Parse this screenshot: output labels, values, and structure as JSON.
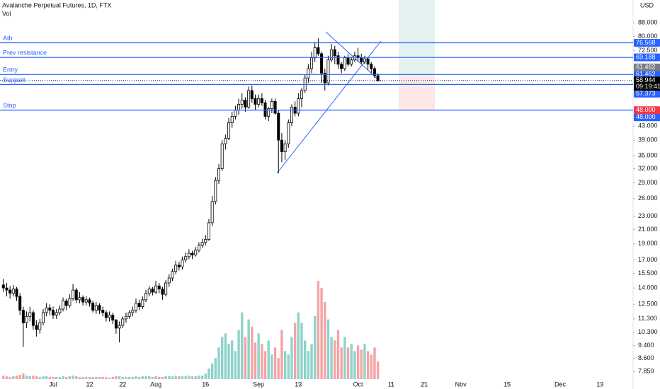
{
  "chart_data": {
    "type": "candlestick",
    "title": "Avalanche Perpetual Futures, 1D, FTX",
    "volume_label": "Vol",
    "currency": "USD",
    "x": [
      "Jun 16",
      "Jun 17",
      "Jun 18",
      "Jun 19",
      "Jun 20",
      "Jun 21",
      "Jun 22",
      "Jun 23",
      "Jun 24",
      "Jun 25",
      "Jun 26",
      "Jun 27",
      "Jun 28",
      "Jun 29",
      "Jun 30",
      "Jul 1",
      "Jul 2",
      "Jul 3",
      "Jul 4",
      "Jul 5",
      "Jul 6",
      "Jul 7",
      "Jul 8",
      "Jul 9",
      "Jul 10",
      "Jul 11",
      "Jul 12",
      "Jul 13",
      "Jul 14",
      "Jul 15",
      "Jul 16",
      "Jul 17",
      "Jul 18",
      "Jul 19",
      "Jul 20",
      "Jul 21",
      "Jul 22",
      "Jul 23",
      "Jul 24",
      "Jul 25",
      "Jul 26",
      "Jul 27",
      "Jul 28",
      "Jul 29",
      "Jul 30",
      "Jul 31",
      "Aug 1",
      "Aug 2",
      "Aug 3",
      "Aug 4",
      "Aug 5",
      "Aug 6",
      "Aug 7",
      "Aug 8",
      "Aug 9",
      "Aug 10",
      "Aug 11",
      "Aug 12",
      "Aug 13",
      "Aug 14",
      "Aug 15",
      "Aug 16",
      "Aug 17",
      "Aug 18",
      "Aug 19",
      "Aug 20",
      "Aug 21",
      "Aug 22",
      "Aug 23",
      "Aug 24",
      "Aug 25",
      "Aug 26",
      "Aug 27",
      "Aug 28",
      "Aug 29",
      "Aug 30",
      "Aug 31",
      "Sep 1",
      "Sep 2",
      "Sep 3",
      "Sep 4",
      "Sep 5",
      "Sep 6",
      "Sep 7",
      "Sep 8",
      "Sep 9",
      "Sep 10",
      "Sep 11",
      "Sep 12",
      "Sep 13",
      "Sep 14",
      "Sep 15",
      "Sep 16",
      "Sep 17",
      "Sep 18",
      "Sep 19",
      "Sep 20",
      "Sep 21",
      "Sep 22",
      "Sep 23",
      "Sep 24",
      "Sep 25",
      "Sep 26",
      "Sep 27",
      "Sep 28",
      "Sep 29",
      "Sep 30",
      "Oct 1",
      "Oct 2",
      "Oct 3",
      "Oct 4",
      "Oct 5",
      "Oct 6",
      "Oct 7"
    ],
    "open": [
      14.3,
      14.0,
      13.8,
      13.5,
      13.9,
      13.2,
      12.0,
      11.0,
      11.5,
      11.8,
      10.8,
      10.5,
      11.0,
      11.8,
      12.2,
      12.0,
      11.6,
      11.8,
      12.1,
      12.8,
      12.4,
      13.0,
      13.8,
      12.9,
      13.1,
      12.7,
      12.9,
      12.6,
      12.0,
      12.4,
      12.0,
      11.8,
      11.4,
      11.6,
      11.2,
      10.6,
      10.8,
      11.3,
      11.5,
      11.8,
      12.0,
      12.6,
      12.3,
      12.9,
      13.5,
      13.9,
      13.6,
      14.2,
      13.9,
      13.4,
      14.5,
      15.0,
      15.7,
      16.4,
      16.2,
      17.0,
      17.4,
      17.8,
      17.6,
      18.2,
      18.8,
      19.2,
      19.6,
      22.0,
      25.5,
      29.5,
      32.0,
      38.0,
      39.5,
      44.0,
      46.0,
      48.0,
      50.0,
      51.5,
      49.0,
      55.0,
      52.0,
      50,
      52,
      50.5,
      46,
      48.5,
      51,
      47,
      39,
      36,
      38,
      44,
      49,
      47,
      52,
      55,
      60,
      64,
      69,
      74,
      71,
      62,
      58,
      68,
      73,
      70,
      66,
      64,
      69,
      66,
      68,
      70,
      69,
      67,
      68.5,
      66,
      64,
      61
    ],
    "high": [
      14.9,
      14.5,
      14.2,
      14.3,
      14.1,
      13.5,
      12.3,
      11.9,
      12.3,
      12.0,
      11.2,
      11.3,
      12.1,
      12.6,
      12.5,
      12.3,
      12.1,
      12.4,
      13.1,
      13.0,
      13.4,
      14.4,
      14.0,
      13.6,
      13.3,
      13.2,
      13.1,
      12.8,
      12.7,
      12.6,
      12.3,
      12.0,
      11.9,
      11.8,
      11.3,
      11.1,
      11.5,
      11.8,
      12.0,
      12.3,
      13.0,
      12.9,
      13.2,
      13.8,
      14.2,
      14.1,
      14.7,
      14.5,
      14.1,
      14.8,
      15.4,
      16.0,
      16.9,
      16.8,
      17.4,
      17.9,
      18.3,
      18.1,
      18.6,
      19.2,
      19.7,
      20.2,
      22.6,
      26.5,
      30.2,
      33.0,
      39.0,
      40.5,
      45.5,
      47.5,
      49.5,
      52.0,
      54.0,
      52.5,
      56.5,
      57.0,
      53.5,
      53.5,
      54,
      51.5,
      49,
      52,
      52,
      48,
      41,
      39,
      45,
      50,
      51,
      54,
      56,
      61.5,
      66,
      72,
      77,
      79,
      72,
      64,
      70,
      76,
      75,
      72,
      67,
      70,
      71,
      69.5,
      72,
      74,
      71,
      70,
      69,
      67,
      65,
      62
    ],
    "low": [
      13.6,
      13.2,
      13.0,
      13.2,
      12.8,
      11.6,
      9.3,
      10.6,
      11.1,
      10.5,
      10.0,
      10.2,
      10.8,
      11.5,
      11.6,
      11.3,
      11.3,
      11.6,
      11.9,
      12.0,
      12.2,
      12.8,
      12.6,
      12.6,
      12.4,
      12.4,
      12.3,
      11.8,
      11.7,
      11.7,
      11.5,
      11.1,
      11.1,
      10.9,
      10.2,
      9.6,
      10.6,
      11.0,
      11.3,
      11.5,
      11.8,
      12.0,
      12.1,
      12.7,
      13.2,
      13.3,
      13.4,
      13.5,
      12.9,
      13.2,
      14.1,
      14.7,
      15.4,
      15.8,
      15.9,
      16.7,
      17.1,
      17.1,
      17.4,
      17.9,
      18.5,
      18.8,
      19.4,
      21.5,
      25.0,
      28.8,
      31.5,
      36.5,
      39.0,
      42.5,
      45.0,
      46.5,
      48.5,
      47.5,
      48.5,
      50.5,
      48.0,
      49,
      49.5,
      45,
      44.5,
      47,
      46.5,
      31,
      33.5,
      34,
      37,
      43,
      46,
      46,
      49,
      54,
      58,
      62,
      67,
      70,
      58,
      55,
      57,
      67,
      66,
      64,
      62,
      63,
      65,
      65,
      67,
      67.5,
      66,
      66,
      63.5,
      62,
      60,
      58.5
    ],
    "close": [
      14.0,
      13.8,
      13.5,
      13.9,
      13.2,
      12.0,
      11.0,
      11.5,
      11.8,
      10.8,
      10.5,
      11.0,
      11.8,
      12.2,
      12.0,
      11.6,
      11.8,
      12.1,
      12.8,
      12.4,
      13.0,
      13.8,
      12.9,
      13.1,
      12.7,
      12.9,
      12.6,
      12.0,
      12.4,
      12.0,
      11.8,
      11.4,
      11.6,
      11.2,
      10.6,
      10.8,
      11.3,
      11.5,
      11.8,
      12.0,
      12.6,
      12.3,
      12.9,
      13.5,
      13.9,
      13.6,
      14.2,
      13.9,
      13.4,
      14.5,
      15.0,
      15.7,
      16.4,
      16.2,
      17.0,
      17.4,
      17.8,
      17.6,
      18.2,
      18.8,
      19.2,
      19.6,
      22.0,
      25.5,
      29.5,
      32.0,
      38.0,
      39.5,
      44.0,
      46.0,
      48.0,
      50.0,
      51.5,
      49.0,
      55.0,
      52.0,
      50.0,
      52,
      50.5,
      46,
      48.5,
      51,
      47,
      39,
      36,
      38,
      44,
      49,
      47,
      52,
      55,
      60,
      64,
      69,
      74,
      71,
      62,
      58,
      68,
      73,
      70,
      66,
      64,
      69,
      66,
      68,
      70,
      69,
      67,
      68.5,
      66,
      64,
      61,
      58.944
    ],
    "volume": [
      5,
      4,
      3,
      4,
      5,
      6,
      8,
      5,
      4,
      5,
      4,
      3,
      4,
      4,
      3,
      3,
      3,
      3,
      4,
      3,
      4,
      5,
      4,
      3,
      3,
      3,
      3,
      3,
      3,
      3,
      3,
      3,
      2,
      3,
      4,
      4,
      3,
      3,
      3,
      3,
      4,
      3,
      4,
      4,
      4,
      3,
      4,
      3,
      3,
      4,
      4,
      4,
      5,
      4,
      4,
      4,
      5,
      4,
      4,
      5,
      5,
      8,
      15,
      22,
      30,
      45,
      60,
      65,
      50,
      55,
      40,
      70,
      95,
      60,
      85,
      75,
      52,
      65,
      50,
      40,
      55,
      35,
      45,
      30,
      70,
      40,
      35,
      60,
      80,
      95,
      80,
      55,
      40,
      50,
      90,
      140,
      130,
      110,
      85,
      60,
      55,
      70,
      45,
      60,
      45,
      50,
      40,
      48,
      42,
      50,
      40,
      35,
      45,
      25
    ],
    "vlim": [
      0,
      540
    ],
    "up_color": "#ffffff",
    "down_color": "#000000",
    "volume_up_color": "#8dd3ca",
    "volume_down_color": "#f5a3a3",
    "log_scale": true,
    "ylim": [
      7.3,
      103
    ],
    "yticks": [
      {
        "value": 88,
        "label": "88.000"
      },
      {
        "value": 80,
        "label": "80.000"
      },
      {
        "value": 72.5,
        "label": "72.500"
      },
      {
        "value": 43,
        "label": "43.000"
      },
      {
        "value": 39,
        "label": "39.000"
      },
      {
        "value": 35,
        "label": "35.000"
      },
      {
        "value": 32,
        "label": "32.000"
      },
      {
        "value": 29,
        "label": "29.000"
      },
      {
        "value": 26,
        "label": "26.000"
      },
      {
        "value": 23,
        "label": "23.000"
      },
      {
        "value": 21,
        "label": "21.000"
      },
      {
        "value": 19,
        "label": "19.000"
      },
      {
        "value": 17,
        "label": "17.000"
      },
      {
        "value": 15.5,
        "label": "15.500"
      },
      {
        "value": 14,
        "label": "14.000"
      },
      {
        "value": 12.5,
        "label": "12.500"
      },
      {
        "value": 11.3,
        "label": "11.300"
      },
      {
        "value": 10.3,
        "label": "10.300"
      },
      {
        "value": 9.4,
        "label": "9.400"
      },
      {
        "value": 8.6,
        "label": "8.600"
      },
      {
        "value": 7.85,
        "label": "7.850"
      }
    ],
    "xticks": [
      {
        "value": 15,
        "label": "Jul"
      },
      {
        "value": 26,
        "label": "12"
      },
      {
        "value": 36,
        "label": "22"
      },
      {
        "value": 46,
        "label": "Aug"
      },
      {
        "value": 61,
        "label": "16"
      },
      {
        "value": 77,
        "label": "Sep"
      },
      {
        "value": 89,
        "label": "13"
      },
      {
        "value": 107,
        "label": "Oct"
      },
      {
        "value": 117,
        "label": "11"
      },
      {
        "value": 127,
        "label": "21"
      },
      {
        "value": 138,
        "label": "Nov"
      },
      {
        "value": 152,
        "label": "15"
      },
      {
        "value": 168,
        "label": "Dec"
      },
      {
        "value": 180,
        "label": "13"
      }
    ],
    "levels": {
      "color": "#2962ff",
      "names": [
        "Ath",
        "Prev resistance",
        "Entry",
        "Support",
        "Stop"
      ],
      "values": [
        76.568,
        69.188,
        61.462,
        57.373,
        48
      ],
      "value_labels": [
        "76.568",
        "69.188",
        "61.462",
        "57.373",
        "48.000"
      ]
    },
    "position": {
      "entry": 61.462,
      "entry_label": "61.462",
      "stop": 48,
      "stop_label": "48.000",
      "target_color": "#e3f1f1",
      "stop_color": "#fde7e7"
    },
    "last_price": 58.944,
    "countdown": "09:19:41"
  }
}
